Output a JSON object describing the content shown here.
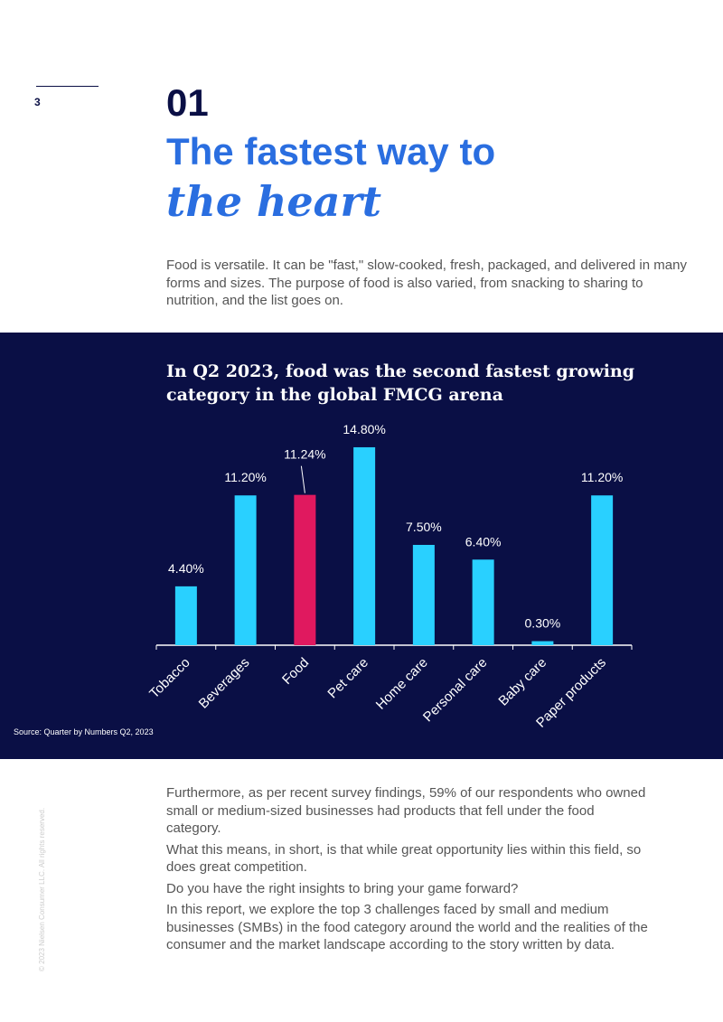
{
  "page_number": "3",
  "section_number": "01",
  "title_line1": "The fastest way to",
  "title_line2": "the heart",
  "intro": "Food is versatile. It can be \"fast,\" slow-cooked, fresh, packaged, and delivered in many forms and sizes. The purpose of food is also varied, from snacking to sharing to nutrition, and the list goes on.",
  "chart_data": {
    "type": "bar",
    "title": "In Q2 2023, food was the second fastest growing category in the global FMCG arena",
    "categories": [
      "Tobacco",
      "Beverages",
      "Food",
      "Pet care",
      "Home care",
      "Personal care",
      "Baby care",
      "Paper products"
    ],
    "values": [
      4.4,
      11.2,
      11.24,
      14.8,
      7.5,
      6.4,
      0.3,
      11.2
    ],
    "value_labels": [
      "4.40%",
      "11.20%",
      "11.24%",
      "14.80%",
      "7.50%",
      "6.40%",
      "0.30%",
      "11.20%"
    ],
    "colors": [
      "#29d0ff",
      "#29d0ff",
      "#e0195f",
      "#29d0ff",
      "#29d0ff",
      "#29d0ff",
      "#29d0ff",
      "#29d0ff"
    ],
    "ylim": [
      0,
      15
    ],
    "source": "Source: Quarter by Numbers Q2, 2023"
  },
  "body": [
    "Furthermore, as per recent survey findings, 59% of our respondents who owned small or medium-sized businesses had products that fell under the food category.",
    "What this means, in short, is that while great opportunity lies within this field, so does great competition.",
    "Do you have the right insights to bring your game forward?",
    "In this report, we explore the top 3 challenges faced by small and medium businesses (SMBs) in the food category around the world and the realities of the consumer and the market landscape according to the story written by data."
  ],
  "copyright": "© 2023 Nielsen Consumer LLC. All rights reserved."
}
